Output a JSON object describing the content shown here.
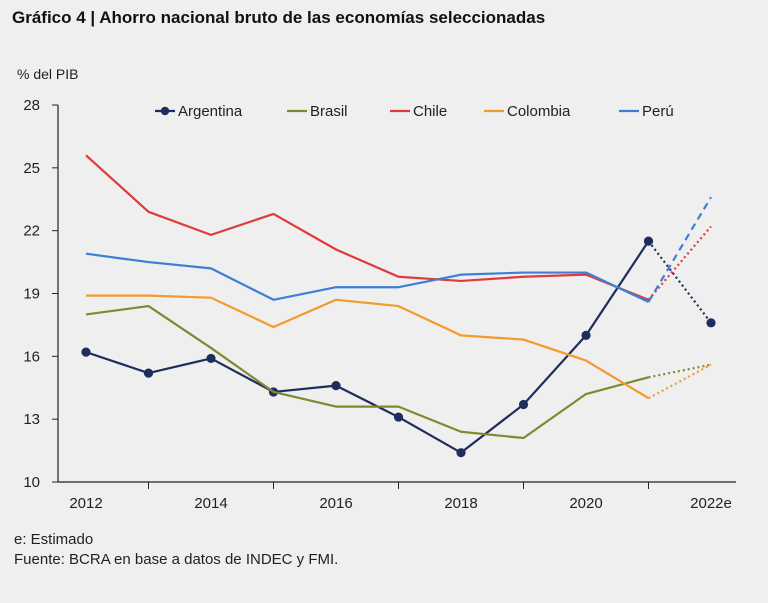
{
  "header": {
    "title": "Gráfico 4 | Ahorro nacional bruto de las economías seleccionadas"
  },
  "footer": {
    "note": "e: Estimado",
    "source": "Fuente: BCRA en base a datos de INDEC y FMI."
  },
  "chart_data": {
    "type": "line",
    "ylabel": "% del PIB",
    "ylim": [
      10,
      28
    ],
    "yticks": [
      10,
      13,
      16,
      19,
      22,
      25,
      28
    ],
    "x": [
      2012,
      2013,
      2014,
      2015,
      2016,
      2017,
      2018,
      2019,
      2020,
      2021,
      2022
    ],
    "xtick_labels": [
      "2012",
      "",
      "2014",
      "",
      "2016",
      "",
      "2018",
      "",
      "2020",
      "",
      "2022e"
    ],
    "grid": false,
    "legend_position": "top",
    "estimate_note": "2021–2022e segment drawn dotted/dashed (estimated)",
    "series": [
      {
        "name": "Argentina",
        "color": "#1f2d5c",
        "markers": true,
        "values": [
          16.2,
          15.2,
          15.9,
          14.3,
          14.6,
          13.1,
          11.4,
          13.7,
          17.0,
          21.5,
          17.6
        ]
      },
      {
        "name": "Brasil",
        "color": "#7f8a2e",
        "markers": false,
        "values": [
          18.0,
          18.4,
          16.4,
          14.3,
          13.6,
          13.6,
          12.4,
          12.1,
          14.2,
          15.0,
          15.6
        ]
      },
      {
        "name": "Chile",
        "color": "#e03a3a",
        "markers": false,
        "values": [
          25.6,
          22.9,
          21.8,
          22.8,
          21.1,
          19.8,
          19.6,
          19.8,
          19.9,
          18.7,
          22.2
        ]
      },
      {
        "name": "Colombia",
        "color": "#f39a2c",
        "markers": false,
        "values": [
          18.9,
          18.9,
          18.8,
          17.4,
          18.7,
          18.4,
          17.0,
          16.8,
          15.8,
          14.0,
          15.6
        ]
      },
      {
        "name": "Perú",
        "color": "#3d7fd6",
        "markers": false,
        "values": [
          20.9,
          20.5,
          20.2,
          18.7,
          19.3,
          19.3,
          19.9,
          20.0,
          20.0,
          18.6,
          23.6
        ]
      }
    ]
  }
}
